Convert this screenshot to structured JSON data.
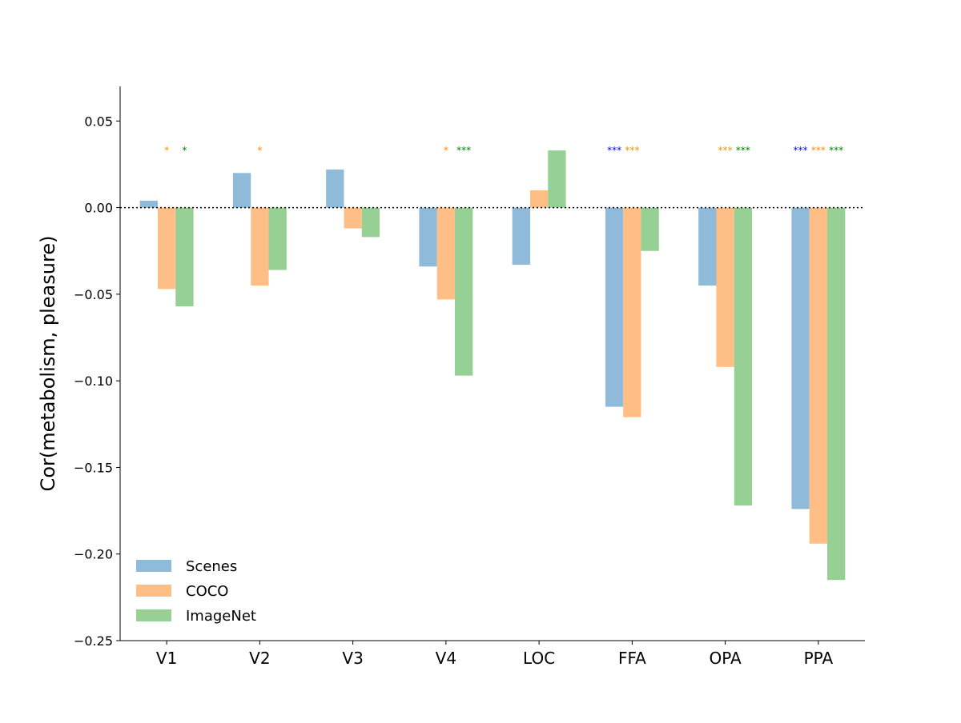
{
  "chart_data": {
    "type": "bar",
    "title": "",
    "xlabel": "",
    "ylabel": "Cor(metabolism, pleasure)",
    "ylim": [
      -0.25,
      0.07
    ],
    "yticks": [
      0.05,
      0.0,
      -0.05,
      -0.1,
      -0.15,
      -0.2,
      -0.25
    ],
    "ytick_labels": [
      "0.05",
      "0.00",
      "−0.05",
      "−0.10",
      "−0.15",
      "−0.20",
      "−0.25"
    ],
    "categories": [
      "V1",
      "V2",
      "V3",
      "V4",
      "LOC",
      "FFA",
      "OPA",
      "PPA"
    ],
    "series": [
      {
        "name": "Scenes",
        "color": "#8fbad9",
        "star_color": "#0000ff",
        "values": [
          0.004,
          0.02,
          0.022,
          -0.034,
          -0.033,
          -0.115,
          -0.045,
          -0.174
        ],
        "significance": [
          "",
          "",
          "",
          "",
          "",
          "***",
          "",
          "***"
        ]
      },
      {
        "name": "COCO",
        "color": "#ffbe86",
        "star_color": "#ff8c00",
        "values": [
          -0.047,
          -0.045,
          -0.012,
          -0.053,
          0.01,
          -0.121,
          -0.092,
          -0.194
        ],
        "significance": [
          "*",
          "*",
          "",
          "*",
          "",
          "***",
          "***",
          "***"
        ]
      },
      {
        "name": "ImageNet",
        "color": "#96d095",
        "star_color": "#008000",
        "values": [
          -0.057,
          -0.036,
          -0.017,
          -0.097,
          0.033,
          -0.025,
          -0.172,
          -0.215
        ],
        "significance": [
          "*",
          "",
          "",
          "***",
          "",
          "",
          "***",
          "***"
        ]
      }
    ],
    "zero_line": "dotted",
    "grid": false,
    "legend": "lower-left"
  }
}
